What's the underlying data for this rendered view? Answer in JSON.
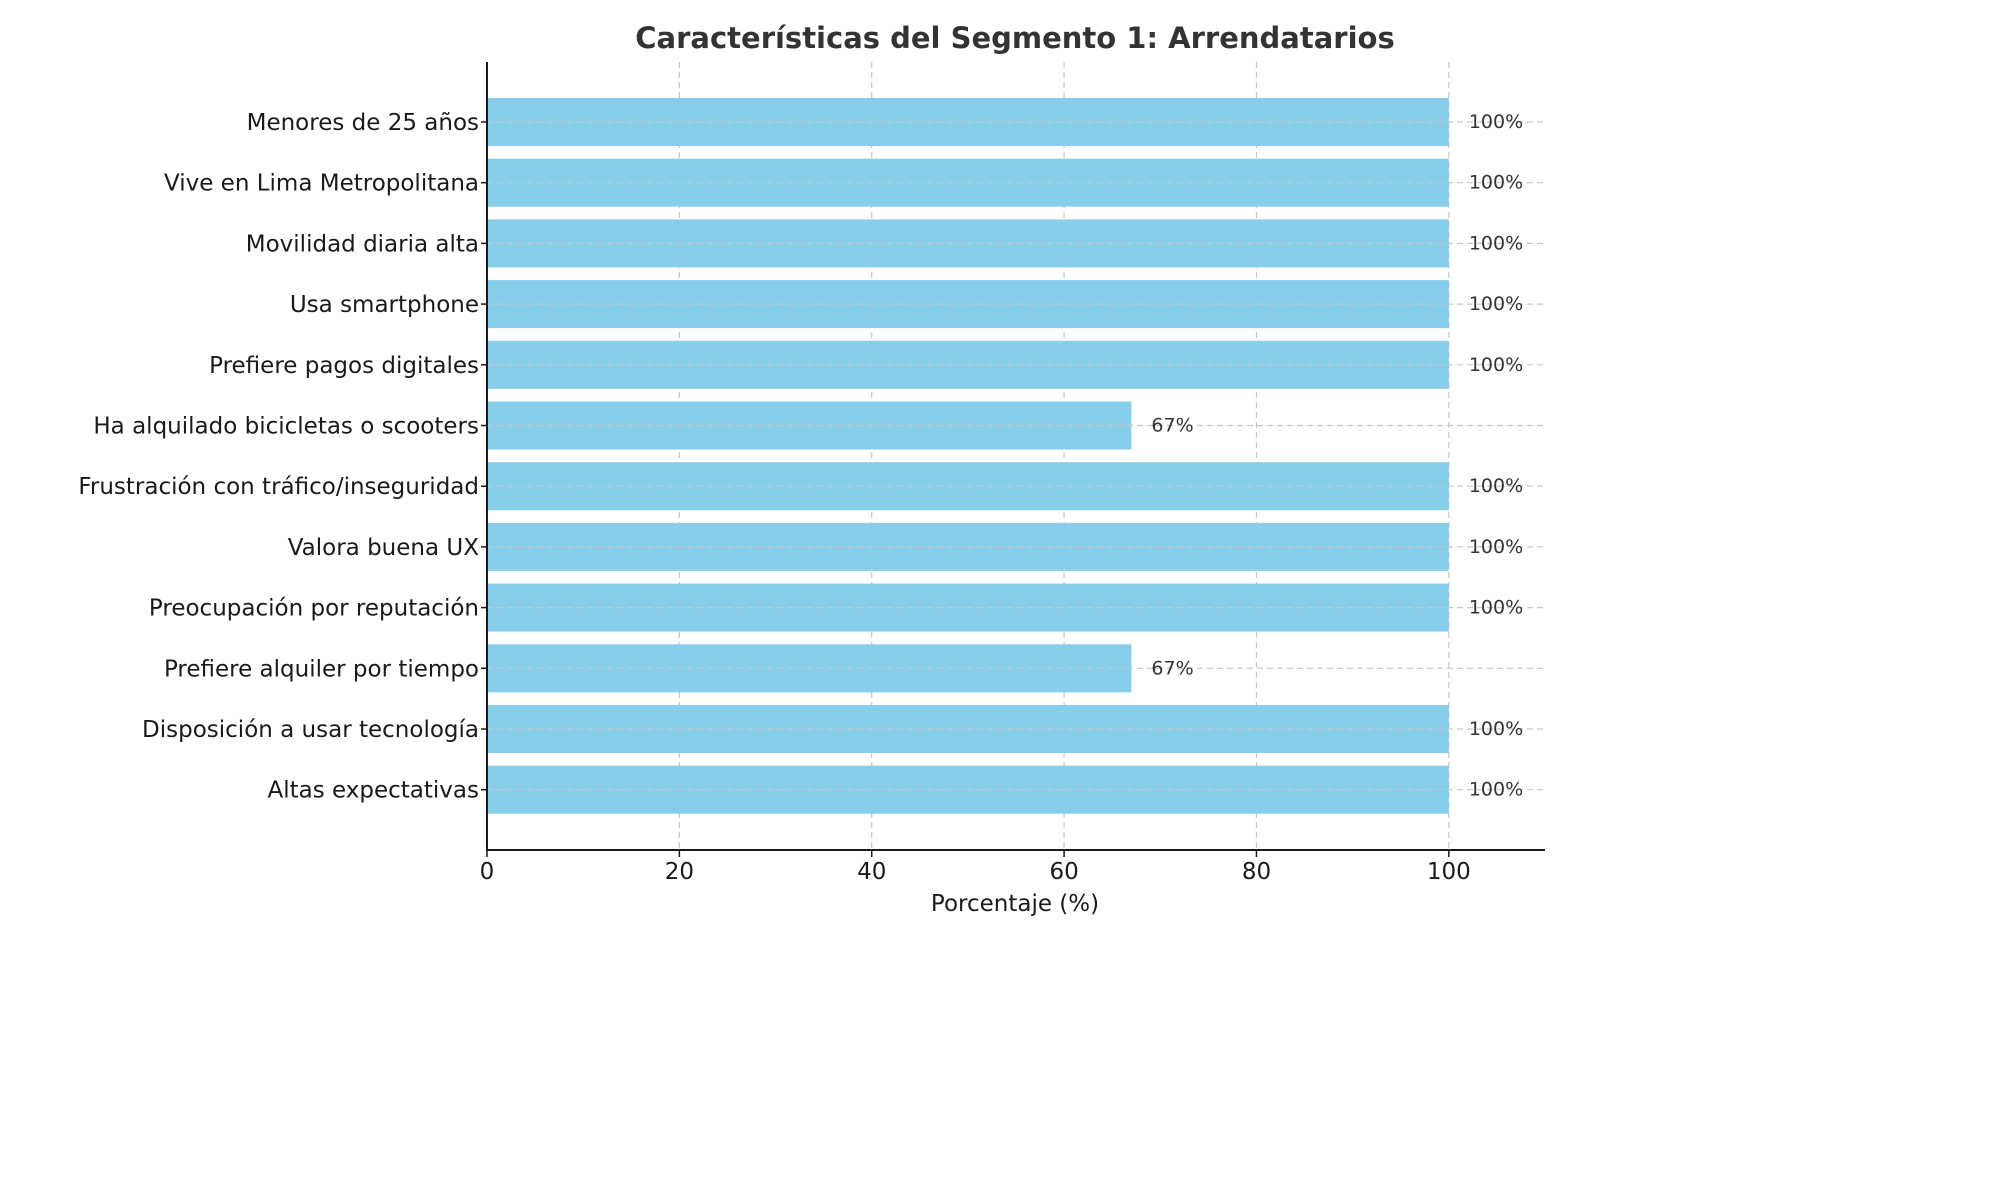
{
  "chart_data": {
    "type": "bar",
    "orientation": "horizontal",
    "title": "Características del Segmento 1: Arrendatarios",
    "xlabel": "Porcentaje (%)",
    "ylabel": "",
    "xlim": [
      0,
      110
    ],
    "xticks": [
      0,
      20,
      40,
      60,
      80,
      100
    ],
    "grid": true,
    "bar_color": "#87CEEB",
    "categories": [
      "Menores de 25 años",
      "Vive en Lima Metropolitana",
      "Movilidad diaria alta",
      "Usa smartphone",
      "Prefiere pagos digitales",
      "Ha alquilado bicicletas o scooters",
      "Frustración con tráfico/inseguridad",
      "Valora buena UX",
      "Preocupación por reputación",
      "Prefiere alquiler por tiempo",
      "Disposición a usar tecnología",
      "Altas expectativas"
    ],
    "values": [
      100,
      100,
      100,
      100,
      100,
      67,
      100,
      100,
      100,
      67,
      100,
      100
    ],
    "data_labels": [
      "100%",
      "100%",
      "100%",
      "100%",
      "100%",
      "67%",
      "100%",
      "100%",
      "100%",
      "67%",
      "100%",
      "100%"
    ]
  }
}
